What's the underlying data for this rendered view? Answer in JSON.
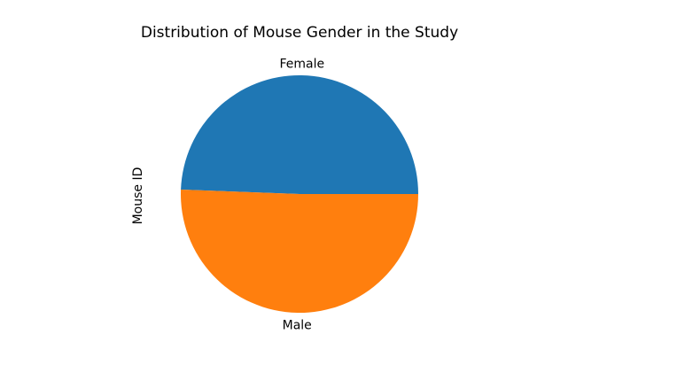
{
  "chart_data": {
    "type": "pie",
    "title": "Distribution of Mouse Gender in the Study",
    "ylabel": "Mouse ID",
    "categories": [
      "Female",
      "Male"
    ],
    "values": [
      49.4,
      50.6
    ],
    "colors": [
      "#1f77b4",
      "#ff7f0e"
    ],
    "start_angle_deg": 0,
    "direction": "counterclockwise",
    "legend": "none"
  }
}
